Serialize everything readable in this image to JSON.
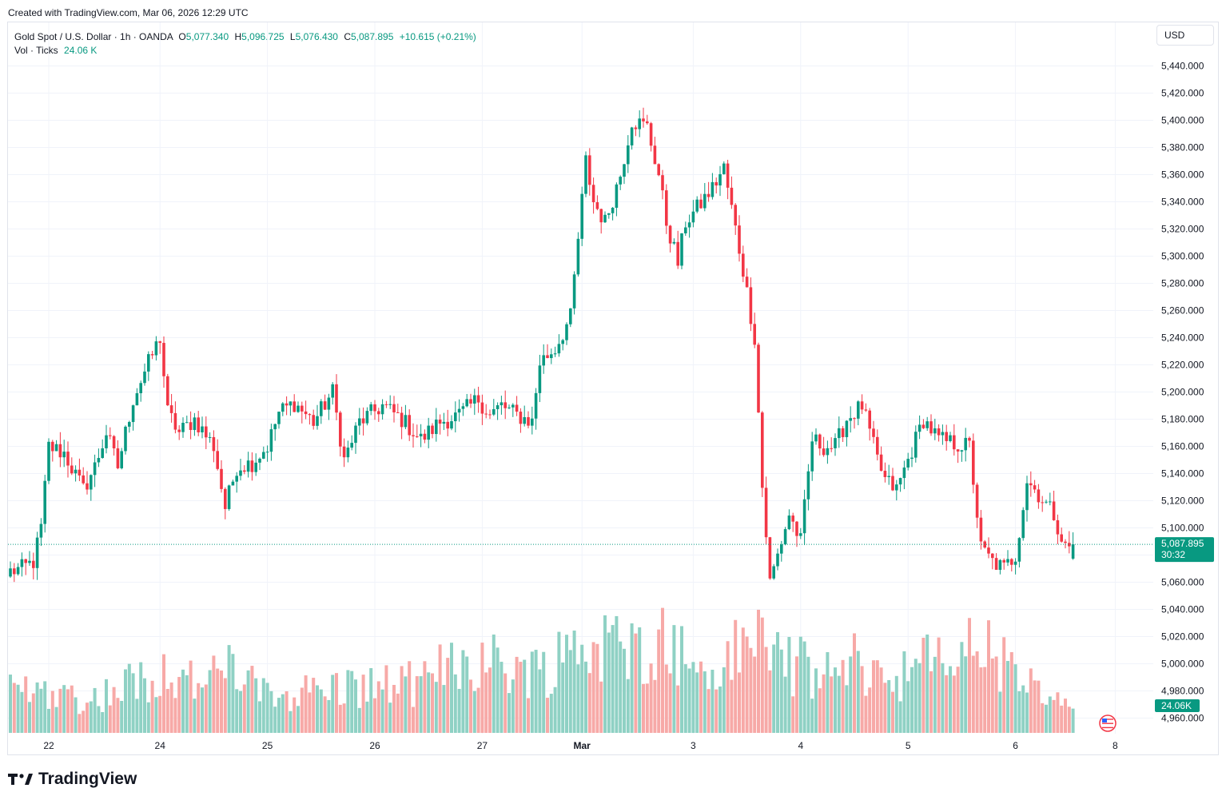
{
  "created_line": "Created with TradingView.com, Mar 06, 2026 12:29 UTC",
  "legend": {
    "symbol": "Gold Spot / U.S. Dollar · 1h · OANDA",
    "o_label": "O",
    "o_value": "5,077.340",
    "h_label": "H",
    "h_value": "5,096.725",
    "l_label": "L",
    "l_value": "5,076.430",
    "c_label": "C",
    "c_value": "5,087.895",
    "change": "+10.615 (+0.21%)",
    "vol_label": "Vol · Ticks",
    "vol_value": "24.06 K"
  },
  "currency_button": "USD",
  "brand": "TradingView",
  "colors": {
    "up": "#089981",
    "down": "#f23645",
    "up_vol": "#8fd1c4",
    "down_vol": "#f7a9a7",
    "grid": "#f0f3fa",
    "axis_text": "#131722"
  },
  "chart_data": {
    "type": "candlestick",
    "title": "Gold Spot / U.S. Dollar · 1h · OANDA",
    "ylabel": "USD",
    "ylim": [
      4950,
      5450
    ],
    "y_ticks": [
      "4,960.000",
      "4,980.000",
      "5,000.000",
      "5,020.000",
      "5,040.000",
      "5,060.000",
      "5,080.000",
      "5,100.000",
      "5,120.000",
      "5,140.000",
      "5,160.000",
      "5,180.000",
      "5,200.000",
      "5,220.000",
      "5,240.000",
      "5,260.000",
      "5,280.000",
      "5,300.000",
      "5,320.000",
      "5,340.000",
      "5,360.000",
      "5,380.000",
      "5,400.000",
      "5,420.000",
      "5,440.000"
    ],
    "x_ticks": [
      {
        "label": "22",
        "bar": 10
      },
      {
        "label": "24",
        "bar": 39
      },
      {
        "label": "25",
        "bar": 67
      },
      {
        "label": "26",
        "bar": 95
      },
      {
        "label": "27",
        "bar": 123
      },
      {
        "label": "Mar",
        "bar": 149
      },
      {
        "label": "3",
        "bar": 178
      },
      {
        "label": "4",
        "bar": 206
      },
      {
        "label": "5",
        "bar": 234
      },
      {
        "label": "6",
        "bar": 262
      },
      {
        "label": "8",
        "bar": 288
      }
    ],
    "anchors": [
      [
        0,
        5068
      ],
      [
        3,
        5070
      ],
      [
        6,
        5075
      ],
      [
        8,
        5100
      ],
      [
        10,
        5160
      ],
      [
        14,
        5155
      ],
      [
        19,
        5128
      ],
      [
        22,
        5145
      ],
      [
        25,
        5170
      ],
      [
        28,
        5145
      ],
      [
        32,
        5195
      ],
      [
        35,
        5215
      ],
      [
        39,
        5240
      ],
      [
        41,
        5185
      ],
      [
        44,
        5170
      ],
      [
        48,
        5180
      ],
      [
        53,
        5160
      ],
      [
        56,
        5115
      ],
      [
        59,
        5145
      ],
      [
        63,
        5148
      ],
      [
        67,
        5160
      ],
      [
        70,
        5185
      ],
      [
        74,
        5192
      ],
      [
        79,
        5178
      ],
      [
        84,
        5200
      ],
      [
        87,
        5150
      ],
      [
        91,
        5178
      ],
      [
        97,
        5190
      ],
      [
        102,
        5180
      ],
      [
        107,
        5165
      ],
      [
        112,
        5178
      ],
      [
        117,
        5183
      ],
      [
        122,
        5195
      ],
      [
        125,
        5183
      ],
      [
        128,
        5190
      ],
      [
        132,
        5183
      ],
      [
        136,
        5178
      ],
      [
        138,
        5222
      ],
      [
        142,
        5232
      ],
      [
        146,
        5255
      ],
      [
        150,
        5370
      ],
      [
        152,
        5340
      ],
      [
        155,
        5325
      ],
      [
        159,
        5360
      ],
      [
        162,
        5400
      ],
      [
        166,
        5395
      ],
      [
        169,
        5360
      ],
      [
        171,
        5325
      ],
      [
        174,
        5295
      ],
      [
        176,
        5325
      ],
      [
        179,
        5335
      ],
      [
        183,
        5350
      ],
      [
        186,
        5365
      ],
      [
        189,
        5320
      ],
      [
        191,
        5290
      ],
      [
        194,
        5240
      ],
      [
        196,
        5130
      ],
      [
        198,
        5060
      ],
      [
        201,
        5090
      ],
      [
        203,
        5110
      ],
      [
        206,
        5090
      ],
      [
        209,
        5165
      ],
      [
        212,
        5160
      ],
      [
        215,
        5160
      ],
      [
        218,
        5180
      ],
      [
        222,
        5190
      ],
      [
        226,
        5150
      ],
      [
        228,
        5135
      ],
      [
        231,
        5128
      ],
      [
        234,
        5150
      ],
      [
        238,
        5180
      ],
      [
        242,
        5165
      ],
      [
        246,
        5162
      ],
      [
        250,
        5160
      ],
      [
        253,
        5085
      ],
      [
        256,
        5075
      ],
      [
        259,
        5070
      ],
      [
        262,
        5080
      ],
      [
        265,
        5135
      ],
      [
        268,
        5125
      ],
      [
        272,
        5110
      ],
      [
        275,
        5085
      ],
      [
        277,
        5087.9
      ]
    ],
    "bar_count": 278,
    "last_open": 5077.34,
    "last_high": 5096.725,
    "last_low": 5076.43,
    "last_close": 5087.895,
    "last_price_label": "5,087.895",
    "countdown": "30:32",
    "volume_label": "24.06K",
    "volume_peaks": [
      [
        0,
        0.45
      ],
      [
        12,
        0.42
      ],
      [
        20,
        0.32
      ],
      [
        39,
        0.62
      ],
      [
        52,
        0.48
      ],
      [
        56,
        0.7
      ],
      [
        66,
        0.38
      ],
      [
        84,
        0.45
      ],
      [
        110,
        0.5
      ],
      [
        114,
        0.78
      ],
      [
        138,
        0.62
      ],
      [
        148,
        0.9
      ],
      [
        163,
        0.82
      ],
      [
        168,
        1.0
      ],
      [
        182,
        0.55
      ],
      [
        193,
        0.92
      ],
      [
        196,
        1.0
      ],
      [
        202,
        0.72
      ],
      [
        212,
        0.55
      ],
      [
        221,
        0.72
      ],
      [
        228,
        0.55
      ],
      [
        254,
        0.88
      ],
      [
        260,
        0.62
      ],
      [
        264,
        0.55
      ],
      [
        270,
        0.3
      ]
    ]
  }
}
